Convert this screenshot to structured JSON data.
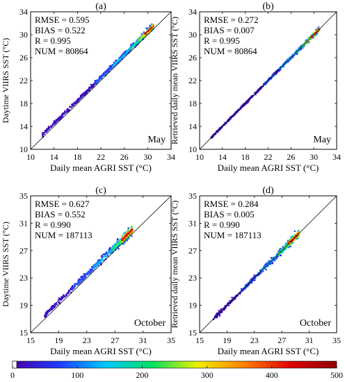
{
  "chart_data": [
    {
      "type": "heatmap",
      "panel_label": "(a)",
      "month": "May",
      "xlabel": "Daily mean AGRI SST (°C)",
      "ylabel": "Daytime VIIRS SST (°C)",
      "xlim": [
        10,
        34
      ],
      "ylim": [
        10,
        34
      ],
      "xticks": [
        10,
        14,
        18,
        22,
        26,
        30,
        34
      ],
      "yticks": [
        10,
        14,
        18,
        22,
        26,
        30,
        34
      ],
      "stats": [
        "RMSE = 0.595",
        "BIAS = 0.522",
        "R = 0.995",
        "NUM = 80864"
      ],
      "bias": 0.522,
      "spread": 0.45,
      "density_segments": [
        {
          "x": [
            12,
            21
          ],
          "density": 30
        },
        {
          "x": [
            21,
            24
          ],
          "density": 110
        },
        {
          "x": [
            24,
            27
          ],
          "density": 160
        },
        {
          "x": [
            27,
            28.5
          ],
          "density": 230
        },
        {
          "x": [
            28.5,
            29.5
          ],
          "density": 330
        },
        {
          "x": [
            29.5,
            31
          ],
          "density": 470
        }
      ]
    },
    {
      "type": "heatmap",
      "panel_label": "(b)",
      "month": "May",
      "xlabel": "Daily mean AGRI SST (°C)",
      "ylabel": "Retrieved daily mean VIIRS SST (°C)",
      "xlim": [
        10,
        34
      ],
      "ylim": [
        10,
        34
      ],
      "xticks": [
        10,
        14,
        18,
        22,
        26,
        30,
        34
      ],
      "yticks": [
        10,
        14,
        18,
        22,
        26,
        30,
        34
      ],
      "stats": [
        "RMSE = 0.272",
        "BIAS = 0.007",
        "R = 0.995",
        "NUM = 80864"
      ],
      "bias": 0.007,
      "spread": 0.3,
      "density_segments": [
        {
          "x": [
            12,
            21
          ],
          "density": 30
        },
        {
          "x": [
            21,
            24
          ],
          "density": 110
        },
        {
          "x": [
            24,
            27
          ],
          "density": 160
        },
        {
          "x": [
            27,
            28.5
          ],
          "density": 250
        },
        {
          "x": [
            28.5,
            29.5
          ],
          "density": 360
        },
        {
          "x": [
            29.5,
            31
          ],
          "density": 480
        }
      ]
    },
    {
      "type": "heatmap",
      "panel_label": "(c)",
      "month": "October",
      "xlabel": "Daily mean AGRI SST (°C)",
      "ylabel": "Daytime VIIRS SST (°C)",
      "xlim": [
        15,
        35
      ],
      "ylim": [
        15,
        35
      ],
      "xticks": [
        15,
        19,
        23,
        27,
        31,
        35
      ],
      "yticks": [
        15,
        19,
        23,
        27,
        31,
        35
      ],
      "stats": [
        "RMSE = 0.627",
        "BIAS = 0.552",
        "R = 0.990",
        "NUM = 187113"
      ],
      "bias": 0.552,
      "spread": 0.55,
      "density_segments": [
        {
          "x": [
            17,
            21
          ],
          "density": 30
        },
        {
          "x": [
            21,
            24
          ],
          "density": 100
        },
        {
          "x": [
            24,
            26.5
          ],
          "density": 160
        },
        {
          "x": [
            26.5,
            28
          ],
          "density": 260
        },
        {
          "x": [
            28,
            29.5
          ],
          "density": 470
        }
      ]
    },
    {
      "type": "heatmap",
      "panel_label": "(d)",
      "month": "October",
      "xlabel": "Daily mean AGRI SST (°C)",
      "ylabel": "Retrieved daily mean VIIRS SST (°C)",
      "xlim": [
        15,
        35
      ],
      "ylim": [
        15,
        35
      ],
      "xticks": [
        15,
        19,
        23,
        27,
        31,
        35
      ],
      "yticks": [
        15,
        19,
        23,
        27,
        31,
        35
      ],
      "stats": [
        "RMSE = 0.284",
        "BIAS = 0.005",
        "R = 0.990",
        "NUM = 187113"
      ],
      "bias": 0.005,
      "spread": 0.45,
      "density_segments": [
        {
          "x": [
            17,
            21
          ],
          "density": 30
        },
        {
          "x": [
            21,
            24
          ],
          "density": 100
        },
        {
          "x": [
            24,
            26.5
          ],
          "density": 160
        },
        {
          "x": [
            26.5,
            28
          ],
          "density": 270
        },
        {
          "x": [
            28,
            29.5
          ],
          "density": 480
        }
      ]
    }
  ],
  "colorbar": {
    "min": 0,
    "max": 500,
    "ticks": [
      0,
      100,
      200,
      300,
      400,
      500
    ],
    "colors": [
      "#4a00a8",
      "#1f3bff",
      "#00c8ff",
      "#00e060",
      "#f0f000",
      "#ff8000",
      "#e00000",
      "#900000"
    ]
  }
}
